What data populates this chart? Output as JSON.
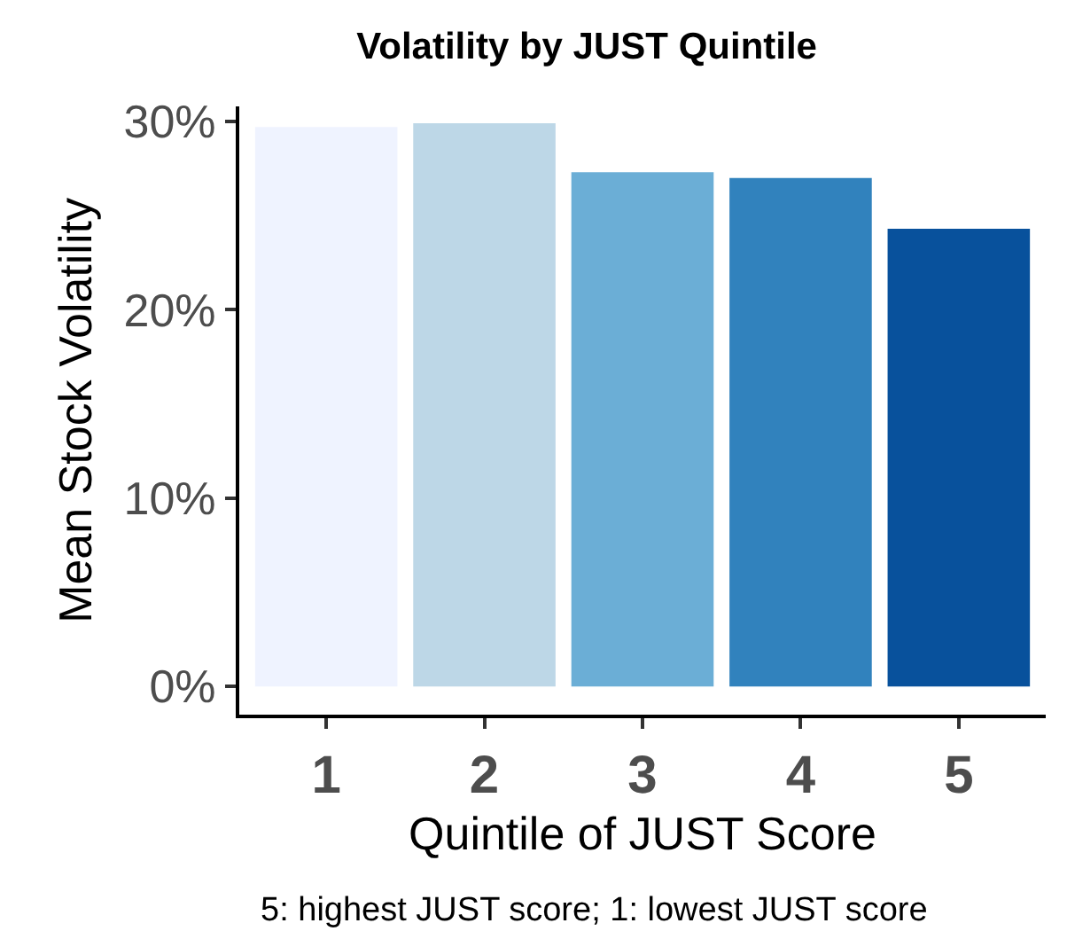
{
  "chart_data": {
    "type": "bar",
    "title": "Volatility by JUST Quintile",
    "xlabel": "Quintile of JUST Score",
    "ylabel": "Mean Stock Volatility",
    "categories": [
      "1",
      "2",
      "3",
      "4",
      "5"
    ],
    "values": [
      29.7,
      29.9,
      27.3,
      27.0,
      24.3
    ],
    "colors": [
      "#eff3ff",
      "#bdd7e7",
      "#6baed6",
      "#3182bd",
      "#08519c"
    ],
    "ylim": [
      -1.5,
      30.8
    ],
    "yticks": [
      {
        "value": 0,
        "label": "0%"
      },
      {
        "value": 10,
        "label": "10%"
      },
      {
        "value": 20,
        "label": "20%"
      },
      {
        "value": 30,
        "label": "30%"
      }
    ],
    "grid": false,
    "legend": false,
    "annotations": [
      "5: highest JUST score; 1: lowest JUST score"
    ]
  }
}
